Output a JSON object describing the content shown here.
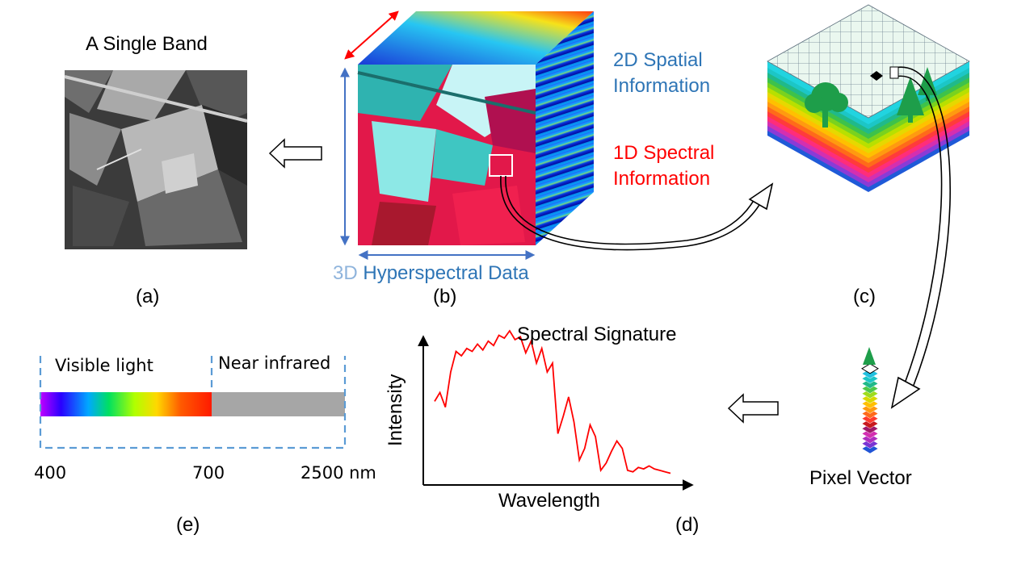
{
  "panels": {
    "a": {
      "title": "A Single Band",
      "label": "(a)"
    },
    "b": {
      "caption_prefix": "3D",
      "caption_main": "Hyperspectral Data",
      "label": "(b)",
      "spatial_line1": "2D Spatial",
      "spatial_line2": "Information",
      "spectral_line1": "1D Spectral",
      "spectral_line2": "Information"
    },
    "c": {
      "label": "(c)"
    },
    "pixel_vector": {
      "label": "Pixel Vector"
    },
    "d": {
      "title": "Spectral Signature",
      "xlabel": "Wavelength",
      "ylabel": "Intensity",
      "label": "(d)"
    },
    "e": {
      "visible": "Visible light",
      "nir": "Near infrared",
      "tick_400": "400",
      "tick_700": "700",
      "tick_2500": "2500 nm",
      "label": "(e)"
    }
  },
  "colors": {
    "text_blue": "#2e75b6",
    "text_red": "#ff0000",
    "arrow_blue": "#4472c4",
    "dashed_blue": "#5b9bd5",
    "signature_red": "#ff0000",
    "tree_green": "#1e9e4a",
    "nir_gray": "#a6a6a6"
  },
  "icons": [
    "left-arrow-icon",
    "tree-icon",
    "conifer-icon",
    "curved-arrow-icon"
  ],
  "chart_data": {
    "type": "line",
    "title": "Spectral Signature",
    "xlabel": "Wavelength",
    "ylabel": "Intensity",
    "series": [
      {
        "values": [
          0.52,
          0.58,
          0.48,
          0.72,
          0.86,
          0.83,
          0.88,
          0.86,
          0.91,
          0.87,
          0.93,
          0.9,
          0.97,
          0.95,
          1.0,
          0.94,
          0.96,
          0.85,
          0.93,
          0.78,
          0.88,
          0.72,
          0.78,
          0.3,
          0.42,
          0.55,
          0.38,
          0.12,
          0.2,
          0.36,
          0.28,
          0.05,
          0.1,
          0.18,
          0.25,
          0.2,
          0.05,
          0.04,
          0.07,
          0.06,
          0.08,
          0.06,
          0.05,
          0.04,
          0.03
        ]
      }
    ]
  }
}
